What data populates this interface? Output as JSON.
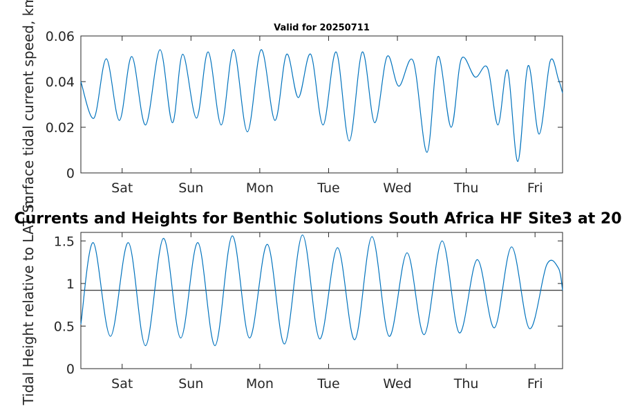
{
  "chart_data": [
    {
      "type": "line",
      "title": "Valid for 20250711",
      "ylabel": "Surface tidal current speed, km",
      "xlim": [
        0,
        7
      ],
      "ylim": [
        0,
        0.06
      ],
      "yticks": [
        0,
        0.02,
        0.04,
        0.06
      ],
      "ytick_labels": [
        "0",
        "0.02",
        "0.04",
        "0.06"
      ],
      "xticks": [
        0.6,
        1.6,
        2.6,
        3.6,
        4.6,
        5.6,
        6.6
      ],
      "xtick_labels": [
        "Sat",
        "Sun",
        "Mon",
        "Tue",
        "Wed",
        "Thu",
        "Fri"
      ],
      "grid": false,
      "line_color": "#0072bd",
      "series": [
        {
          "x": [
            0,
            0.19,
            0.37,
            0.56,
            0.74,
            0.94,
            1.15,
            1.33,
            1.48,
            1.68,
            1.85,
            2.04,
            2.22,
            2.42,
            2.62,
            2.82,
            2.99,
            3.16,
            3.34,
            3.52,
            3.71,
            3.9,
            4.09,
            4.27,
            4.45,
            4.62,
            4.83,
            5.03,
            5.19,
            5.38,
            5.53,
            5.73,
            5.91,
            6.06,
            6.2,
            6.35,
            6.5,
            6.66,
            6.82,
            6.94,
            7
          ],
          "y": [
            0.04,
            0.024,
            0.05,
            0.023,
            0.051,
            0.021,
            0.054,
            0.022,
            0.052,
            0.024,
            0.053,
            0.021,
            0.054,
            0.018,
            0.054,
            0.023,
            0.052,
            0.033,
            0.052,
            0.021,
            0.053,
            0.014,
            0.053,
            0.022,
            0.051,
            0.038,
            0.049,
            0.009,
            0.051,
            0.02,
            0.05,
            0.042,
            0.046,
            0.021,
            0.045,
            0.005,
            0.047,
            0.017,
            0.049,
            0.041,
            0.035
          ]
        }
      ]
    },
    {
      "type": "line",
      "title": "Currents and Heights for Benthic Solutions South Africa HF Site3 at 20",
      "ylabel": "Tidal Height relative to LAT, m",
      "xlim": [
        0,
        7
      ],
      "ylim": [
        0,
        1.6
      ],
      "yticks": [
        0,
        0.5,
        1,
        1.5
      ],
      "ytick_labels": [
        "0",
        "0.5",
        "1",
        "1.5"
      ],
      "xticks": [
        0.6,
        1.6,
        2.6,
        3.6,
        4.6,
        5.6,
        6.6
      ],
      "xtick_labels": [
        "Sat",
        "Sun",
        "Mon",
        "Tue",
        "Wed",
        "Thu",
        "Fri"
      ],
      "grid": false,
      "line_color": "#0072bd",
      "reference_line": 0.92,
      "reference_color": "#000000",
      "series": [
        {
          "x": [
            0,
            0.18,
            0.43,
            0.69,
            0.94,
            1.2,
            1.45,
            1.7,
            1.95,
            2.2,
            2.45,
            2.71,
            2.96,
            3.22,
            3.47,
            3.73,
            3.98,
            4.23,
            4.48,
            4.74,
            4.99,
            5.25,
            5.5,
            5.76,
            6.01,
            6.26,
            6.52,
            6.77,
            6.94,
            7
          ],
          "y": [
            0.52,
            1.48,
            0.38,
            1.48,
            0.27,
            1.53,
            0.36,
            1.48,
            0.27,
            1.56,
            0.36,
            1.46,
            0.29,
            1.57,
            0.35,
            1.42,
            0.34,
            1.55,
            0.38,
            1.36,
            0.4,
            1.5,
            0.42,
            1.28,
            0.48,
            1.43,
            0.47,
            1.22,
            1.18,
            0.92
          ]
        }
      ]
    }
  ]
}
